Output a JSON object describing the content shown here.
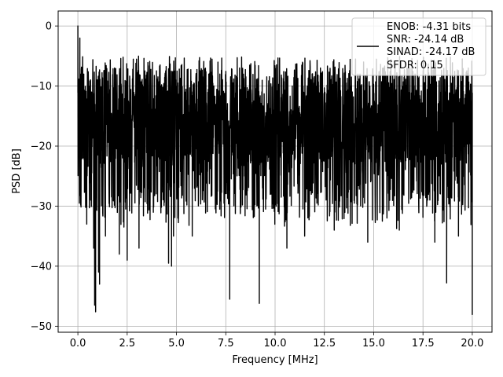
{
  "chart_data": {
    "type": "line",
    "xlabel": "Frequency [MHz]",
    "ylabel": "PSD [dB]",
    "xlim": [
      -1.0,
      21.0
    ],
    "ylim": [
      -51,
      2.5
    ],
    "xticks": [
      0.0,
      2.5,
      5.0,
      7.5,
      10.0,
      12.5,
      15.0,
      17.5,
      20.0
    ],
    "xtick_labels": [
      "0.0",
      "2.5",
      "5.0",
      "7.5",
      "10.0",
      "12.5",
      "15.0",
      "17.5",
      "20.0"
    ],
    "yticks": [
      0,
      -10,
      -20,
      -30,
      -40,
      -50
    ],
    "ytick_labels": [
      "0",
      "−10",
      "−20",
      "−30",
      "−40",
      "−50"
    ],
    "grid": true,
    "legend_position": "top-right",
    "legend_lines": [
      "ENOB: -4.31 bits",
      "SNR: -24.14 dB",
      "SINAD: -24.17 dB",
      "SFDR: 0.15"
    ],
    "series": [
      {
        "color": "#000000",
        "x_range": [
          0.0,
          20.0
        ],
        "y_band_upper": [
          -7,
          -5
        ],
        "y_band_lower": [
          -24,
          -30
        ],
        "approx_points": [
          [
            0.0,
            0.0
          ],
          [
            0.02,
            -14
          ],
          [
            0.1,
            -2
          ],
          [
            0.15,
            -8
          ],
          [
            0.2,
            -22
          ],
          [
            0.3,
            -8
          ],
          [
            0.45,
            -33
          ],
          [
            0.55,
            -10
          ],
          [
            0.65,
            -29
          ],
          [
            0.8,
            -37
          ],
          [
            0.85,
            -46.5
          ],
          [
            0.9,
            -47.6
          ],
          [
            1.05,
            -41
          ],
          [
            1.1,
            -43
          ],
          [
            1.25,
            -11
          ],
          [
            1.4,
            -35
          ],
          [
            1.65,
            -10
          ],
          [
            2.1,
            -38
          ],
          [
            2.3,
            -10
          ],
          [
            2.5,
            -39
          ],
          [
            3.1,
            -37
          ],
          [
            3.5,
            -8
          ],
          [
            4.2,
            -10
          ],
          [
            4.6,
            -39.5
          ],
          [
            4.75,
            -40
          ],
          [
            4.85,
            -35
          ],
          [
            5.8,
            -35
          ],
          [
            6.0,
            -10
          ],
          [
            7.2,
            -8
          ],
          [
            7.7,
            -45.5
          ],
          [
            8.2,
            -7
          ],
          [
            9.2,
            -46.2
          ],
          [
            10.0,
            -10
          ],
          [
            10.6,
            -37
          ],
          [
            11.5,
            -35
          ],
          [
            12.3,
            -7
          ],
          [
            13.0,
            -34
          ],
          [
            14.2,
            -8
          ],
          [
            14.7,
            -36
          ],
          [
            15.5,
            -7
          ],
          [
            16.3,
            -34
          ],
          [
            17.1,
            -8
          ],
          [
            18.1,
            -36
          ],
          [
            18.7,
            -42.8
          ],
          [
            19.3,
            -35
          ],
          [
            19.8,
            -7
          ],
          [
            20.0,
            -48.1
          ]
        ]
      }
    ]
  }
}
